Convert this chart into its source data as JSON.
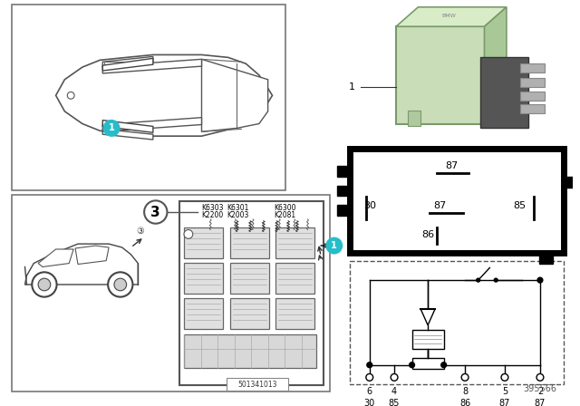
{
  "bg_color": "#ffffff",
  "part_number": "395566",
  "fuse_box_number": "501341013",
  "relay_color": "#c8ddb8",
  "teal_color": "#28bcc8",
  "dark_gray": "#444444",
  "mid_gray": "#888888",
  "light_gray": "#cccccc",
  "relay_terminal_labels": [
    "87",
    "30",
    "87",
    "85",
    "86"
  ],
  "pin_top": [
    "6",
    "4",
    "8",
    "5",
    "2"
  ],
  "pin_bot": [
    "30",
    "85",
    "86",
    "87",
    "87"
  ],
  "k_row1": [
    "K6303",
    "K6301",
    "K6300"
  ],
  "k_row2": [
    "K2200",
    "K2003",
    "K2081"
  ]
}
